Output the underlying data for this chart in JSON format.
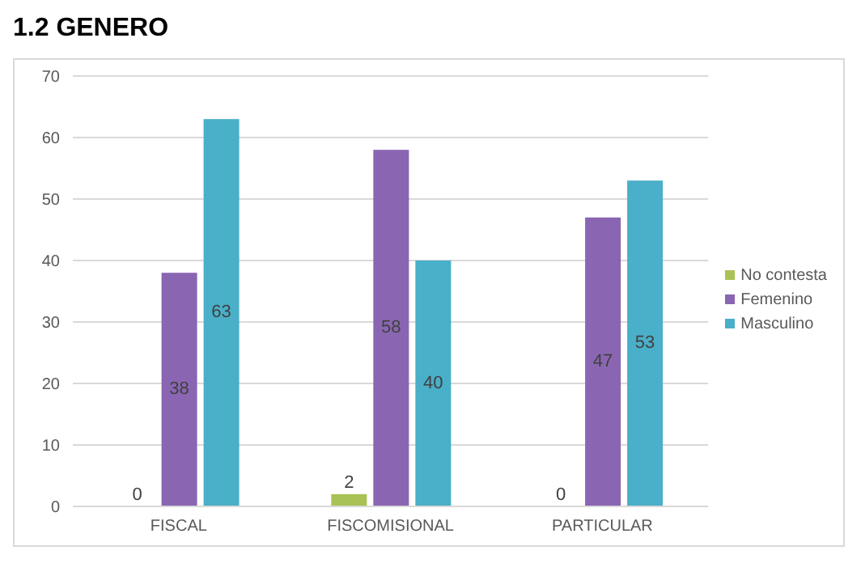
{
  "chart_data": {
    "type": "bar",
    "title": "1.2 GENERO",
    "categories": [
      "FISCAL",
      "FISCOMISIONAL",
      "PARTICULAR"
    ],
    "series": [
      {
        "name": "No contesta",
        "color": "#a9c255",
        "values": [
          0,
          2,
          0
        ],
        "value_labels": [
          null,
          "2",
          null
        ]
      },
      {
        "name": "Femenino",
        "color": "#8a66b2",
        "values": [
          38,
          58,
          47
        ],
        "value_labels": [
          "38",
          "58",
          "47"
        ]
      },
      {
        "name": "Masculino",
        "color": "#4aafc8",
        "values": [
          63,
          40,
          53
        ],
        "value_labels": [
          "63",
          "40",
          "53"
        ]
      }
    ],
    "annotations": [
      {
        "text": "0",
        "x": "FISCAL",
        "y": 0
      },
      {
        "text": "0",
        "x": "PARTICULAR",
        "y": 0
      }
    ],
    "ylim": [
      0,
      70
    ],
    "yticks": [
      0,
      10,
      20,
      30,
      40,
      50,
      60,
      70
    ],
    "grid": "y",
    "legend": "right"
  }
}
